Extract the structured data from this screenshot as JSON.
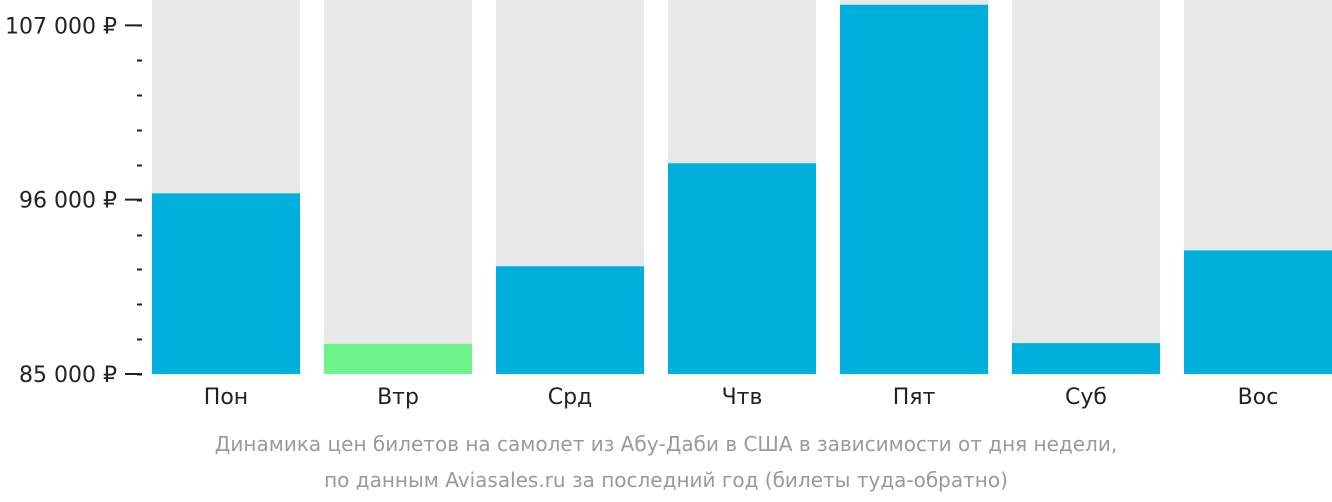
{
  "chart_data": {
    "type": "bar",
    "categories": [
      "Пон",
      "Втр",
      "Срд",
      "Чтв",
      "Пят",
      "Суб",
      "Вос"
    ],
    "values": [
      96400,
      86900,
      91800,
      98300,
      108300,
      86950,
      92800
    ],
    "ylim": [
      85000,
      108600
    ],
    "yticks": [
      {
        "value": 85000,
        "label": "85 000 ₽"
      },
      {
        "value": 96000,
        "label": "96 000 ₽"
      },
      {
        "value": 107000,
        "label": "107 000 ₽"
      }
    ],
    "minor_tick_step": 2200,
    "colors": {
      "bar": "#00b0dc",
      "lowest_bar": "#6ef28a",
      "background_bar": "#e8e8e8",
      "axis": "#222222"
    },
    "highlight_index": 1
  },
  "caption": {
    "line1": "Динамика цен билетов на самолет из Абу-Даби в США в зависимости от дня недели,",
    "line2": "по данным Aviasales.ru за последний год (билеты туда-обратно)"
  }
}
